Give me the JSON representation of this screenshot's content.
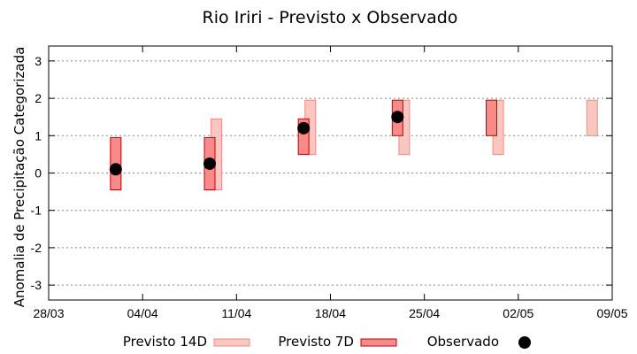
{
  "chart_data": {
    "type": "range-bar",
    "title": "Rio Iriri - Previsto x Observado",
    "xlabel": "",
    "ylabel": "Anomalia de Precipitação Categorizada",
    "ylim": [
      -3.4,
      3.4
    ],
    "yticks": [
      3,
      2,
      1,
      0,
      -1,
      -2,
      -3
    ],
    "x_range_days": [
      0,
      42
    ],
    "xticks": [
      {
        "day": 0,
        "label": "28/03"
      },
      {
        "day": 7,
        "label": "04/04"
      },
      {
        "day": 14,
        "label": "11/04"
      },
      {
        "day": 21,
        "label": "18/04"
      },
      {
        "day": 28,
        "label": "25/04"
      },
      {
        "day": 35,
        "label": "02/05"
      },
      {
        "day": 42,
        "label": "09/05"
      }
    ],
    "grid": true,
    "legend_position": "bottom",
    "colors": {
      "previsto14_fill": "#f9c6c0",
      "previsto14_edge": "#f08a80",
      "previsto7_fill": "#f88a8a",
      "previsto7_edge": "#c00000",
      "observado": "#000000"
    },
    "series": [
      {
        "name": "Previsto 14D",
        "kind": "range",
        "points": [
          {
            "day": 12.5,
            "low": -0.45,
            "high": 1.45
          },
          {
            "day": 19.5,
            "low": 0.5,
            "high": 1.95
          },
          {
            "day": 26.5,
            "low": 0.5,
            "high": 1.95
          },
          {
            "day": 33.5,
            "low": 0.5,
            "high": 1.95
          },
          {
            "day": 40.5,
            "low": 1.0,
            "high": 1.95
          }
        ]
      },
      {
        "name": "Previsto 7D",
        "kind": "range",
        "points": [
          {
            "day": 5.0,
            "low": -0.45,
            "high": 0.95
          },
          {
            "day": 12.0,
            "low": -0.45,
            "high": 0.95
          },
          {
            "day": 19.0,
            "low": 0.5,
            "high": 1.45
          },
          {
            "day": 26.0,
            "low": 1.0,
            "high": 1.95
          },
          {
            "day": 33.0,
            "low": 1.0,
            "high": 1.95
          }
        ]
      },
      {
        "name": "Observado",
        "kind": "point",
        "points": [
          {
            "day": 5.0,
            "y": 0.1
          },
          {
            "day": 12.0,
            "y": 0.25
          },
          {
            "day": 19.0,
            "y": 1.2
          },
          {
            "day": 26.0,
            "y": 1.5
          }
        ]
      }
    ]
  }
}
